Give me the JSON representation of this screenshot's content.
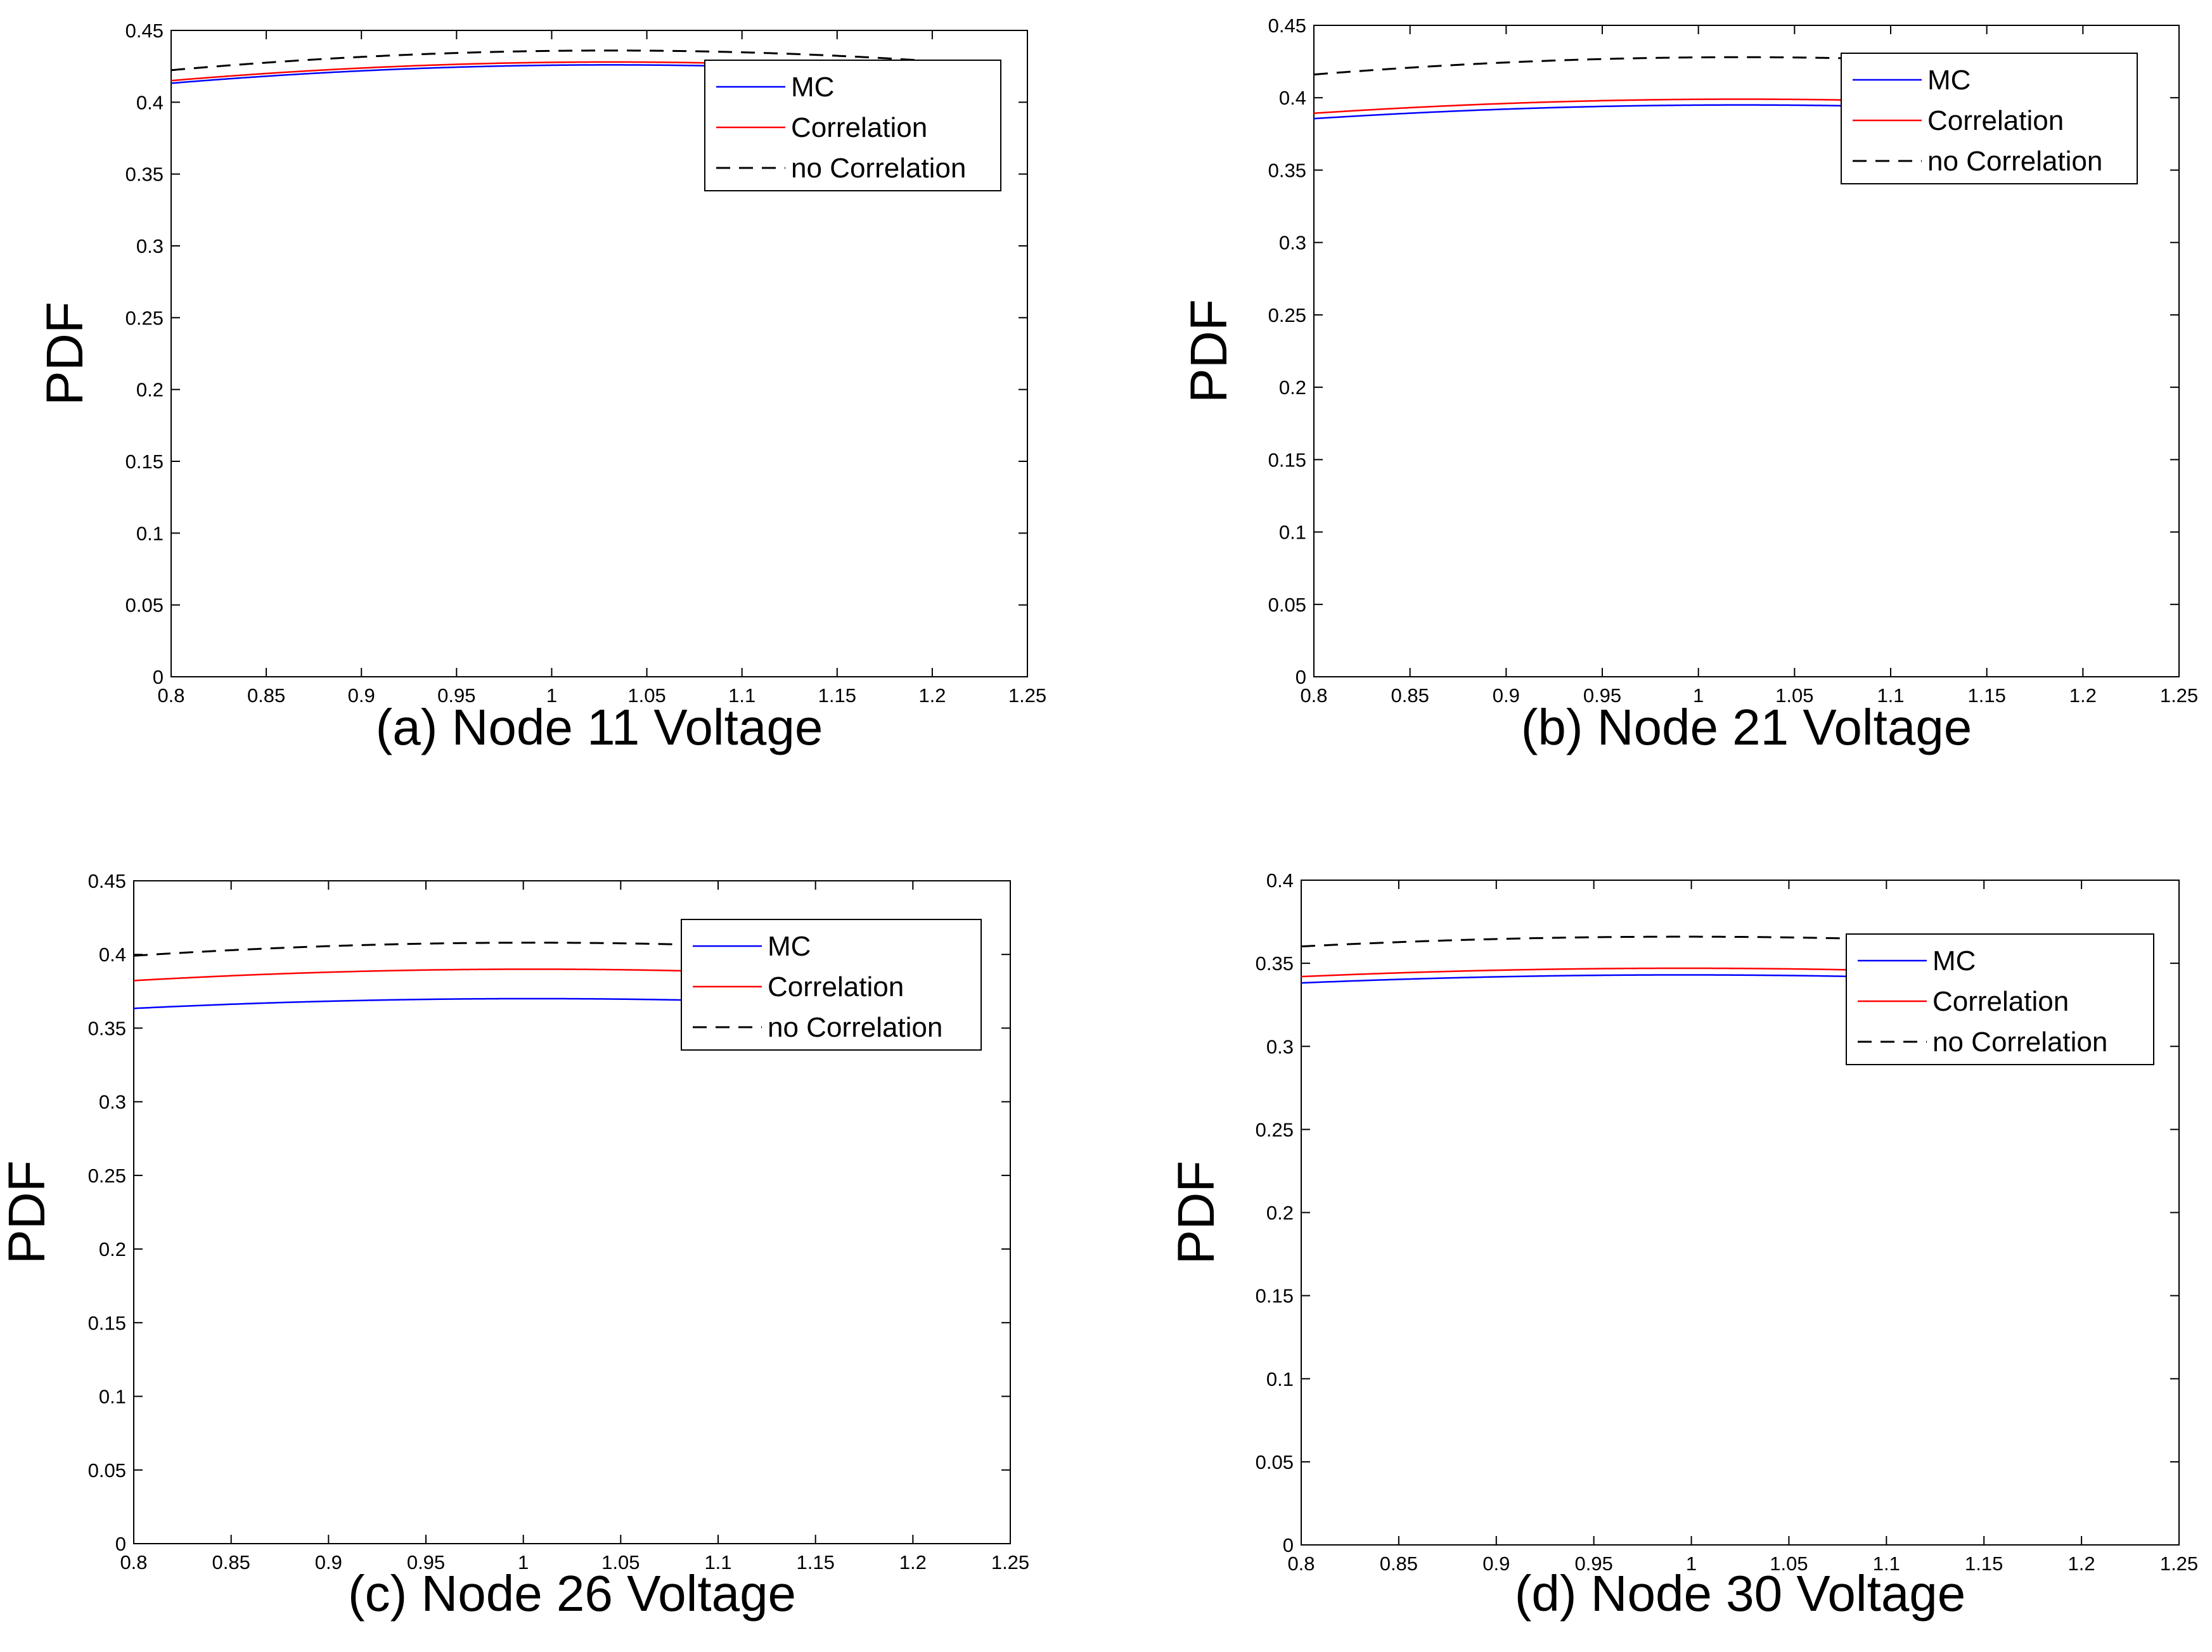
{
  "colors": {
    "mc": "#0000ff",
    "correlation": "#ff0000",
    "no_correlation": "#000000",
    "axes": "#000000",
    "background": "#ffffff"
  },
  "legend_labels": [
    "MC",
    "Correlation",
    "no Correlation"
  ],
  "chart_data": [
    {
      "type": "line",
      "title": "(a) Node 11 Voltage",
      "xlabel": "(a) Node 11 Voltage",
      "ylabel": "PDF",
      "xlim": [
        0.8,
        1.25
      ],
      "ylim": [
        0,
        0.45
      ],
      "xticks": [
        "0.8",
        "0.85",
        "0.9",
        "0.95",
        "1",
        "1.05",
        "1.1",
        "1.15",
        "1.2",
        "1.25"
      ],
      "yticks": [
        "0",
        "0.05",
        "0.1",
        "0.15",
        "0.2",
        "0.25",
        "0.3",
        "0.35",
        "0.4",
        "0.45"
      ],
      "legend": "top-right",
      "x_range": [
        0.8,
        1.2
      ],
      "series": [
        {
          "name": "MC",
          "mean": 1.031,
          "peak": 0.426,
          "style": "solid",
          "color": "#0000ff"
        },
        {
          "name": "Correlation",
          "mean": 1.031,
          "peak": 0.428,
          "style": "solid",
          "color": "#ff0000"
        },
        {
          "name": "no Correlation",
          "mean": 1.031,
          "peak": 0.436,
          "style": "dashed",
          "color": "#000000"
        }
      ]
    },
    {
      "type": "line",
      "title": "(b) Node 21 Voltage",
      "xlabel": "(b) Node 21 Voltage",
      "ylabel": "PDF",
      "xlim": [
        0.8,
        1.25
      ],
      "ylim": [
        0,
        0.45
      ],
      "xticks": [
        "0.8",
        "0.85",
        "0.9",
        "0.95",
        "1",
        "1.05",
        "1.1",
        "1.15",
        "1.2",
        "1.25"
      ],
      "yticks": [
        "0",
        "0.05",
        "0.1",
        "0.15",
        "0.2",
        "0.25",
        "0.3",
        "0.35",
        "0.4",
        "0.45"
      ],
      "legend": "top-right",
      "x_range": [
        0.8,
        1.2
      ],
      "series": [
        {
          "name": "MC",
          "mean": 1.022,
          "peak": 0.395,
          "style": "solid",
          "color": "#0000ff"
        },
        {
          "name": "Correlation",
          "mean": 1.022,
          "peak": 0.399,
          "style": "solid",
          "color": "#ff0000"
        },
        {
          "name": "no Correlation",
          "mean": 1.022,
          "peak": 0.428,
          "style": "dashed",
          "color": "#000000"
        }
      ]
    },
    {
      "type": "line",
      "title": "(c) Node 26 Voltage",
      "xlabel": "(c) Node 26 Voltage",
      "ylabel": "PDF",
      "xlim": [
        0.8,
        1.25
      ],
      "ylim": [
        0,
        0.45
      ],
      "xticks": [
        "0.8",
        "0.85",
        "0.9",
        "0.95",
        "1",
        "1.05",
        "1.1",
        "1.15",
        "1.2",
        "1.25"
      ],
      "yticks": [
        "0",
        "0.05",
        "0.1",
        "0.15",
        "0.2",
        "0.25",
        "0.3",
        "0.35",
        "0.4",
        "0.45"
      ],
      "legend": "top-right",
      "x_range": [
        0.8,
        1.2
      ],
      "series": [
        {
          "name": "MC",
          "mean": 1.005,
          "peak": 0.37,
          "style": "solid",
          "color": "#0000ff"
        },
        {
          "name": "Correlation",
          "mean": 1.005,
          "peak": 0.39,
          "style": "solid",
          "color": "#ff0000"
        },
        {
          "name": "no Correlation",
          "mean": 1.005,
          "peak": 0.408,
          "style": "dashed",
          "color": "#000000"
        }
      ]
    },
    {
      "type": "line",
      "title": "(d) Node 30 Voltage",
      "xlabel": "(d) Node 30 Voltage",
      "ylabel": "PDF",
      "xlim": [
        0.8,
        1.25
      ],
      "ylim": [
        0,
        0.4
      ],
      "xticks": [
        "0.8",
        "0.85",
        "0.9",
        "0.95",
        "1",
        "1.05",
        "1.1",
        "1.15",
        "1.2",
        "1.25"
      ],
      "yticks": [
        "0",
        "0.05",
        "0.1",
        "0.15",
        "0.2",
        "0.25",
        "0.3",
        "0.35",
        "0.4"
      ],
      "legend": "top-right",
      "x_range": [
        0.8,
        1.2
      ],
      "series": [
        {
          "name": "MC",
          "mean": 0.996,
          "peak": 0.343,
          "style": "solid",
          "color": "#0000ff"
        },
        {
          "name": "Correlation",
          "mean": 0.996,
          "peak": 0.347,
          "style": "solid",
          "color": "#ff0000"
        },
        {
          "name": "no Correlation",
          "mean": 0.996,
          "peak": 0.366,
          "style": "dashed",
          "color": "#000000"
        }
      ]
    }
  ]
}
